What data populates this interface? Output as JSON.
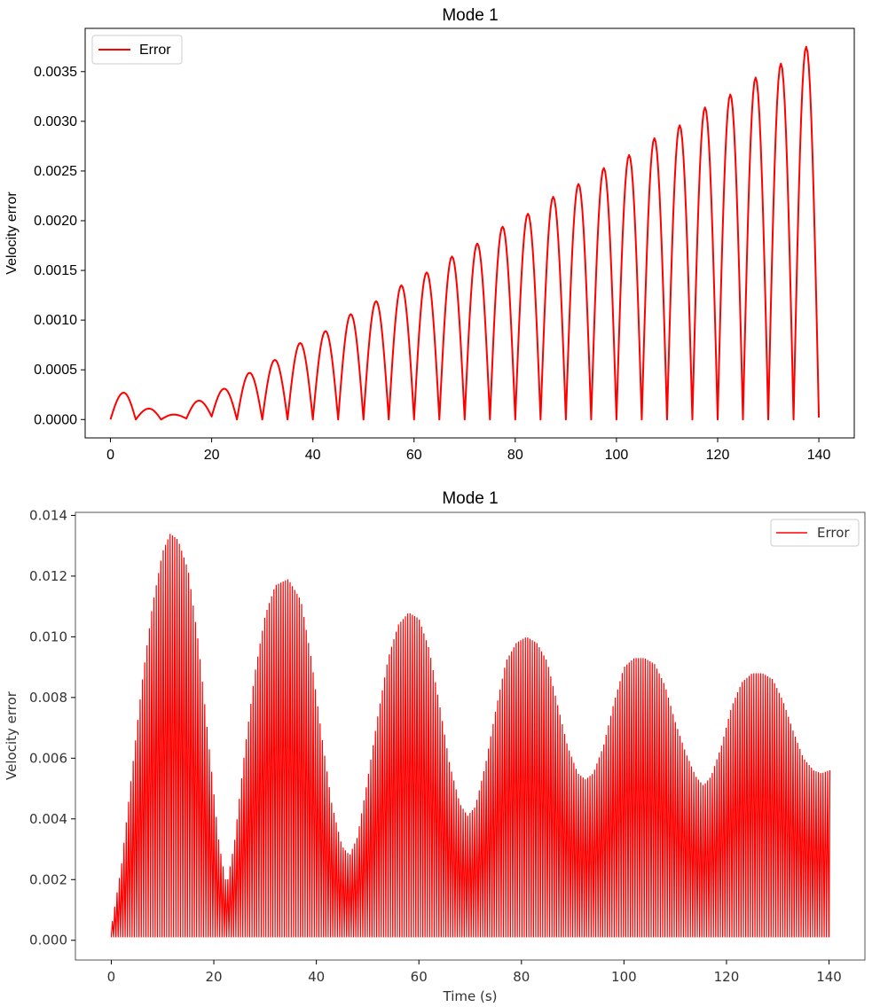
{
  "chart_data": [
    {
      "type": "line",
      "title": "Mode 1",
      "xlabel": "",
      "ylabel": "Velocity error",
      "xlim": [
        -5,
        147
      ],
      "ylim": [
        -0.000185,
        0.003935
      ],
      "xticks": [
        0,
        20,
        40,
        60,
        80,
        100,
        120,
        140
      ],
      "xtick_labels": [
        "0",
        "20",
        "40",
        "60",
        "80",
        "100",
        "120",
        "140"
      ],
      "yticks": [
        0,
        0.0005,
        0.001,
        0.0015,
        0.002,
        0.0025,
        0.003,
        0.0035
      ],
      "ytick_labels": [
        "0.0000",
        "0.0005",
        "0.0010",
        "0.0015",
        "0.0020",
        "0.0025",
        "0.0030",
        "0.0035"
      ],
      "grid": false,
      "legend": "top-left",
      "color": "#ff0000",
      "series": [
        {
          "name": "Error",
          "x": [
            0,
            2.6,
            5,
            7.6,
            10,
            12.5,
            15,
            17.5,
            20,
            22.5,
            25,
            27.5,
            30,
            32.5,
            35,
            37.5,
            40,
            42.5,
            45,
            47.5,
            50,
            52.5,
            55,
            57.5,
            60,
            62.5,
            65,
            67.5,
            70,
            72.5,
            75,
            77.5,
            80,
            82.5,
            85,
            87.5,
            90,
            92.5,
            95,
            97.5,
            100,
            102.5,
            105,
            107.5,
            110,
            112.5,
            115,
            117.5,
            120,
            122.5,
            125,
            127.5,
            130,
            132.5,
            135,
            137.5,
            140
          ],
          "y": [
            0,
            0.00027,
            0,
            0.00011,
            0,
            5e-05,
            1e-05,
            0.00019,
            3e-05,
            0.00031,
            0,
            0.00047,
            0,
            0.0006,
            0,
            0.00077,
            0,
            0.00089,
            0,
            0.00106,
            0,
            0.00119,
            0,
            0.00135,
            0,
            0.00148,
            0,
            0.00164,
            0,
            0.00177,
            0,
            0.00194,
            0,
            0.00207,
            0,
            0.00224,
            0,
            0.00237,
            0,
            0.00253,
            0,
            0.00266,
            0,
            0.00283,
            0,
            0.00296,
            0,
            0.00314,
            0,
            0.00327,
            0,
            0.00344,
            0,
            0.00358,
            0,
            0.00375,
            2e-05
          ]
        }
      ]
    },
    {
      "type": "line",
      "title": "Mode 1",
      "xlabel": "Time (s)",
      "ylabel": "Velocity error",
      "xlim": [
        -7,
        147
      ],
      "ylim": [
        -0.00065,
        0.0141
      ],
      "xticks": [
        0,
        20,
        40,
        60,
        80,
        100,
        120,
        140
      ],
      "xtick_labels": [
        "0",
        "20",
        "40",
        "60",
        "80",
        "100",
        "120",
        "140"
      ],
      "yticks": [
        0,
        0.002,
        0.004,
        0.006,
        0.008,
        0.01,
        0.012,
        0.014
      ],
      "ytick_labels": [
        "0.000",
        "0.002",
        "0.004",
        "0.006",
        "0.008",
        "0.010",
        "0.012",
        "0.014"
      ],
      "grid": false,
      "legend": "top-right",
      "color": "#ff0000",
      "series": [
        {
          "name": "Error",
          "oscillation_period": 0.45,
          "baseline": 0.0001,
          "envelope_max": {
            "x": [
              0,
              2,
              4,
              6,
              8,
              10,
              11.5,
              13,
              15,
              17,
              19,
              21,
              22.5,
              24,
              26,
              28,
              30,
              32,
              34.5,
              37,
              39,
              41,
              43,
              45,
              46.5,
              48,
              50,
              52,
              54,
              56,
              58,
              60,
              62,
              64,
              66,
              68,
              69.5,
              71,
              73,
              75,
              77,
              79,
              81,
              83,
              85,
              87,
              89,
              91,
              92.5,
              94,
              96,
              98,
              100,
              102,
              104,
              106,
              108,
              110,
              112,
              114,
              115.5,
              117,
              119,
              121,
              123,
              125,
              127,
              129,
              131,
              133,
              135,
              137,
              138.5,
              140
            ],
            "y": [
              0.0004,
              0.0025,
              0.0055,
              0.0085,
              0.011,
              0.0128,
              0.0134,
              0.0132,
              0.0122,
              0.0098,
              0.0065,
              0.0032,
              0.0018,
              0.0032,
              0.0062,
              0.0088,
              0.0107,
              0.0117,
              0.0119,
              0.0112,
              0.0093,
              0.0068,
              0.0045,
              0.0031,
              0.0028,
              0.0034,
              0.0053,
              0.0074,
              0.0093,
              0.0104,
              0.0108,
              0.0106,
              0.0096,
              0.0078,
              0.0058,
              0.0045,
              0.0041,
              0.0044,
              0.0058,
              0.0076,
              0.0092,
              0.0098,
              0.01,
              0.0098,
              0.0092,
              0.0078,
              0.0064,
              0.0055,
              0.0053,
              0.0055,
              0.0064,
              0.0078,
              0.009,
              0.0093,
              0.0093,
              0.0091,
              0.0084,
              0.0072,
              0.0062,
              0.0054,
              0.0051,
              0.0054,
              0.0064,
              0.0077,
              0.0085,
              0.0088,
              0.0088,
              0.0086,
              0.0079,
              0.0069,
              0.006,
              0.0056,
              0.0055,
              0.0056
            ]
          }
        }
      ]
    }
  ]
}
